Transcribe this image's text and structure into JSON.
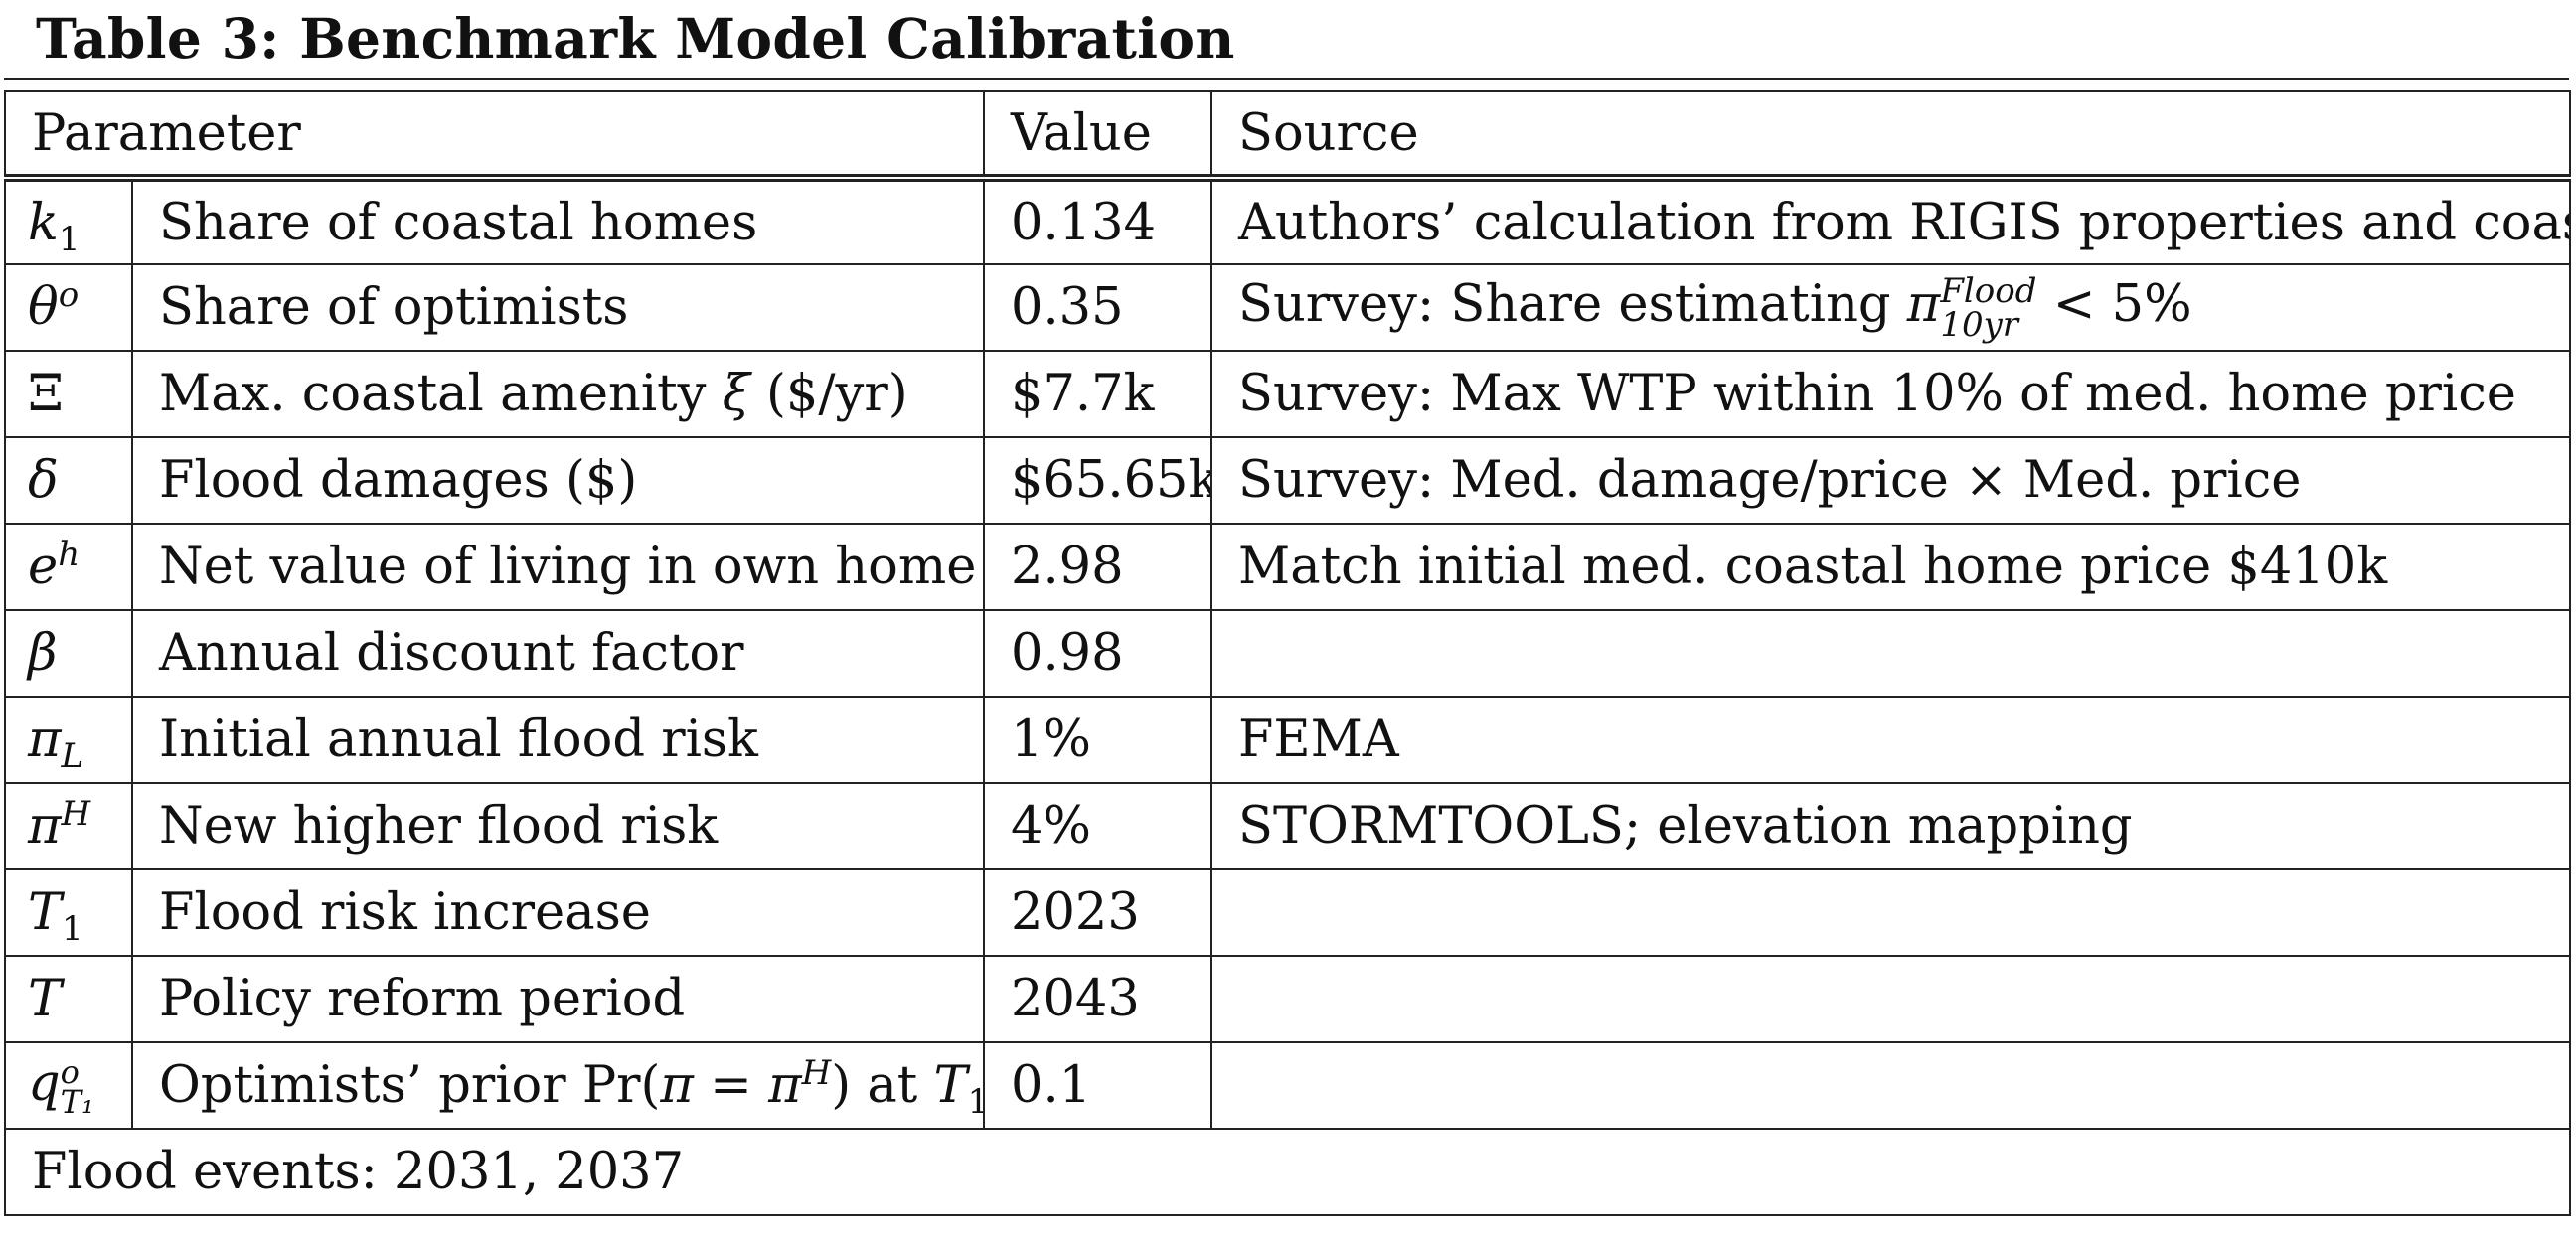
{
  "caption": "Table 3:  Benchmark Model Calibration",
  "columns": {
    "parameter": "Parameter",
    "value": "Value",
    "source": "Source"
  },
  "rows": [
    {
      "symbol": "k",
      "symbol_sub": "1",
      "description": "Share of coastal homes",
      "value": "0.134",
      "source": "Authors’ calculation from RIGIS properties and coastline"
    },
    {
      "symbol": "θ",
      "symbol_sup": "o",
      "description": "Share of optimists",
      "value": "0.35",
      "source_prefix": "Survey: Share estimating ",
      "source_pi": "π",
      "source_sup": "Flood",
      "source_sub": "10yr",
      "source_suffix": " < 5%"
    },
    {
      "symbol": "Ξ",
      "description_prefix": "Max. coastal amenity ",
      "description_var": "ξ",
      "description_suffix": " ($/yr)",
      "value": "$7.7k",
      "source": "Survey: Max WTP within 10% of med. home price"
    },
    {
      "symbol": "δ",
      "description": "Flood damages ($)",
      "value": "$65.65k",
      "source": "Survey: Med. damage/price × Med. price"
    },
    {
      "symbol": "e",
      "symbol_sup": "h",
      "description": "Net value of living in own home",
      "value": "2.98",
      "source": "Match initial med. coastal home price $410k"
    },
    {
      "symbol": "β",
      "description": "Annual discount factor",
      "value": "0.98",
      "source": ""
    },
    {
      "symbol": "π",
      "symbol_sub": "L",
      "description": "Initial annual flood risk",
      "value": "1%",
      "source": "FEMA"
    },
    {
      "symbol": "π",
      "symbol_sup": "H",
      "description": "New higher flood risk",
      "value": "4%",
      "source": "STORMTOOLS; elevation mapping"
    },
    {
      "symbol": "T",
      "symbol_sub": "1",
      "description": "Flood risk increase",
      "value": "2023",
      "source": ""
    },
    {
      "symbol": "T",
      "description": "Policy reform period",
      "value": "2043",
      "source": ""
    },
    {
      "symbol": "q",
      "symbol_sup": "o",
      "symbol_sub": "T₁",
      "description_prefix": "Optimists’ prior Pr(",
      "description_var": "π",
      "description_mid": " = ",
      "description_var2": "π",
      "description_sup": "H",
      "description_mid2": ") at ",
      "description_var3": "T",
      "description_sub": "1",
      "value": "0.1",
      "source": ""
    }
  ],
  "footer": "Flood events: 2031, 2037"
}
